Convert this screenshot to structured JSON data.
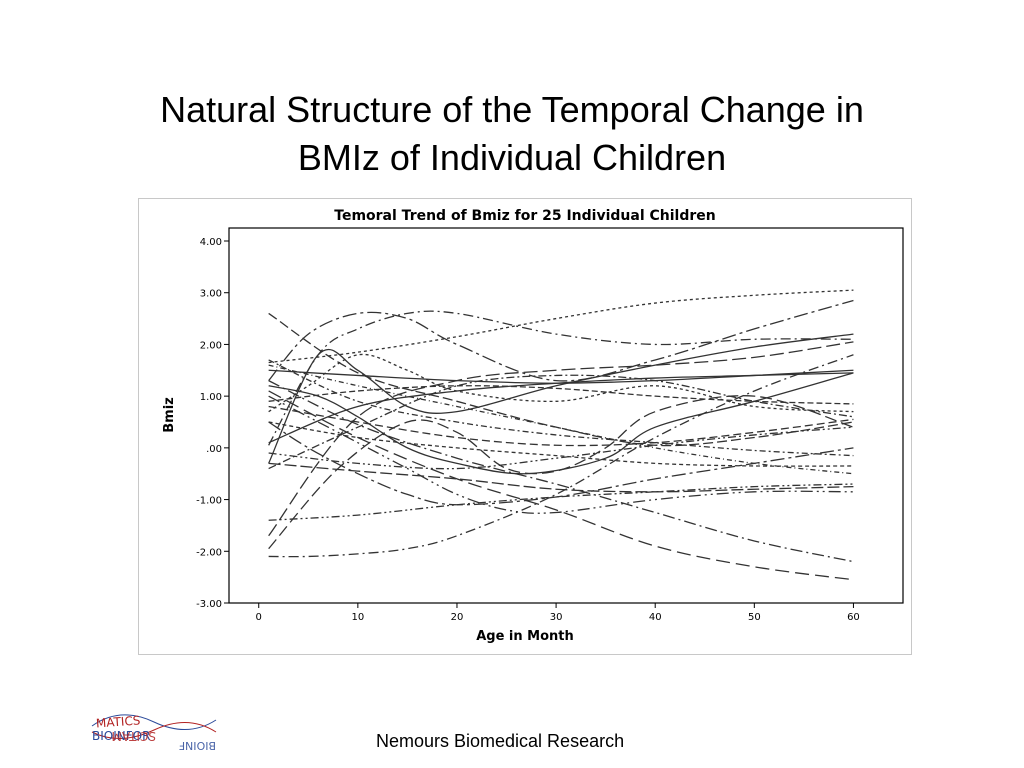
{
  "slide": {
    "title_line1": "Natural Structure of the Temporal Change in",
    "title_line2": "BMIz of Individual Children",
    "footer": "Nemours Biomedical Research",
    "logo_text_top": "BIOINFORMATICS",
    "logo_text_mirror": "BIOINFORMATICS"
  },
  "chart_data": {
    "type": "line",
    "title": "Temoral Trend of Bmiz for 25 Individual Children",
    "xlabel": "Age in Month",
    "ylabel": "Bmiz",
    "xlim": [
      -3,
      65
    ],
    "ylim": [
      -3,
      4
    ],
    "x_ticks": [
      0,
      10,
      20,
      30,
      40,
      50,
      60
    ],
    "x_tick_labels": [
      "0",
      "10",
      "20",
      "30",
      "40",
      "50",
      "60"
    ],
    "y_ticks": [
      -3,
      -2,
      -1,
      0,
      1,
      2,
      3,
      4
    ],
    "y_tick_labels": [
      "-3.00",
      "-2.00",
      "-1.00",
      ".00",
      "1.00",
      "2.00",
      "3.00",
      "4.00"
    ],
    "grid": false,
    "line_color": "#333333",
    "series": [
      {
        "x": [
          1,
          10,
          20,
          30,
          40,
          50,
          60
        ],
        "y": [
          1.65,
          1.85,
          2.15,
          2.5,
          2.8,
          2.95,
          3.05
        ],
        "dash": "3 3"
      },
      {
        "x": [
          1,
          6,
          10,
          15,
          20,
          30,
          40,
          50,
          60
        ],
        "y": [
          0.05,
          1.8,
          2.3,
          2.6,
          2.6,
          2.2,
          2.0,
          2.1,
          2.1
        ],
        "dash": "10 4 2 4"
      },
      {
        "x": [
          1,
          5,
          10,
          15,
          20,
          30,
          40,
          50,
          60
        ],
        "y": [
          1.3,
          2.2,
          2.6,
          2.5,
          2.0,
          1.3,
          1.7,
          2.3,
          2.85
        ],
        "dash": "14 4 3 4"
      },
      {
        "x": [
          1,
          10,
          20,
          30,
          40,
          50,
          60
        ],
        "y": [
          1.5,
          1.4,
          1.3,
          1.25,
          1.3,
          1.4,
          1.5
        ],
        "dash": ""
      },
      {
        "x": [
          1,
          6,
          10,
          15,
          20,
          30,
          40,
          50,
          60
        ],
        "y": [
          -0.3,
          1.8,
          1.5,
          0.8,
          0.7,
          1.2,
          1.6,
          1.95,
          2.2
        ],
        "dash": ""
      },
      {
        "x": [
          1,
          10,
          20,
          30,
          40,
          50,
          60
        ],
        "y": [
          -0.3,
          -0.45,
          -0.6,
          -0.8,
          -0.85,
          -0.8,
          -0.75
        ],
        "dash": "12 4"
      },
      {
        "x": [
          1,
          10,
          20,
          30,
          40,
          50,
          60
        ],
        "y": [
          -1.4,
          -1.3,
          -1.1,
          -0.95,
          -0.85,
          -0.75,
          -0.7
        ],
        "dash": "8 3 2 3 2 3"
      },
      {
        "x": [
          1,
          5,
          10,
          15,
          20,
          30,
          40,
          50,
          60
        ],
        "y": [
          -2.1,
          -2.1,
          -2.05,
          -1.95,
          -1.7,
          -0.9,
          0.2,
          1.1,
          1.8
        ],
        "dash": "10 4 2 4"
      },
      {
        "x": [
          1,
          10,
          20,
          30,
          40,
          50,
          60
        ],
        "y": [
          -1.7,
          0.6,
          1.3,
          1.5,
          1.6,
          1.75,
          2.05
        ],
        "dash": "14 5"
      },
      {
        "x": [
          1,
          10,
          20,
          30,
          40,
          50,
          60
        ],
        "y": [
          1.1,
          0.2,
          -0.6,
          -1.2,
          -1.9,
          -2.3,
          -2.55
        ],
        "dash": "14 6"
      },
      {
        "x": [
          1,
          10,
          20,
          30,
          40,
          50,
          60
        ],
        "y": [
          1.3,
          0.45,
          -0.2,
          -0.7,
          -1.25,
          -1.8,
          -2.2
        ],
        "dash": "12 4 2 4"
      },
      {
        "x": [
          1,
          10,
          20,
          30,
          40,
          50,
          60
        ],
        "y": [
          0.5,
          0.2,
          0.0,
          -0.15,
          -0.3,
          -0.35,
          -0.35
        ],
        "dash": "4 3"
      },
      {
        "x": [
          1,
          10,
          20,
          30,
          40,
          50,
          60
        ],
        "y": [
          0.1,
          0.8,
          1.1,
          1.25,
          1.35,
          1.4,
          1.45
        ],
        "dash": ""
      },
      {
        "x": [
          1,
          10,
          20,
          30,
          40,
          50,
          60
        ],
        "y": [
          2.6,
          1.45,
          0.9,
          0.4,
          0.05,
          0.2,
          0.5
        ],
        "dash": "10 4"
      },
      {
        "x": [
          1,
          10,
          20,
          30,
          40,
          50,
          60
        ],
        "y": [
          1.7,
          0.9,
          0.5,
          0.25,
          0.1,
          -0.05,
          -0.15
        ],
        "dash": "6 3 2 3"
      },
      {
        "x": [
          1,
          10,
          20,
          30,
          40,
          50,
          60
        ],
        "y": [
          0.9,
          1.1,
          1.2,
          1.15,
          1.0,
          0.9,
          0.85
        ],
        "dash": "6 3"
      },
      {
        "x": [
          1,
          10,
          20,
          30,
          40,
          50,
          60
        ],
        "y": [
          0.8,
          0.5,
          0.2,
          0.05,
          0.1,
          0.3,
          0.55
        ],
        "dash": "8 4"
      },
      {
        "x": [
          1,
          10,
          20,
          30,
          40,
          50,
          60
        ],
        "y": [
          -0.1,
          -0.3,
          -0.4,
          -0.2,
          0.05,
          0.25,
          0.4
        ],
        "dash": "8 3 2 3 2 3"
      },
      {
        "x": [
          1,
          8,
          15,
          20,
          25,
          30,
          35,
          40,
          50,
          60
        ],
        "y": [
          -1.95,
          -0.4,
          0.5,
          0.3,
          -0.4,
          -0.45,
          0.0,
          0.7,
          1.0,
          0.4
        ],
        "dash": "12 5"
      },
      {
        "x": [
          1,
          5,
          10,
          15,
          20,
          25,
          30,
          40,
          50,
          60
        ],
        "y": [
          1.0,
          0.6,
          0.1,
          -0.4,
          -0.9,
          -1.2,
          -1.25,
          -1.0,
          -0.85,
          -0.85
        ],
        "dash": "12 4 2 4 2 4"
      },
      {
        "x": [
          1,
          6,
          10,
          15,
          20,
          27,
          35,
          40,
          50,
          60
        ],
        "y": [
          1.2,
          1.0,
          0.6,
          0.0,
          -0.3,
          -0.5,
          -0.2,
          0.4,
          0.9,
          1.45
        ],
        "dash": ""
      },
      {
        "x": [
          1,
          5,
          10,
          15,
          20,
          30,
          40,
          50,
          60
        ],
        "y": [
          0.7,
          1.2,
          1.8,
          1.5,
          1.1,
          0.9,
          1.2,
          0.8,
          0.7
        ],
        "dash": "3 3"
      },
      {
        "x": [
          1,
          10,
          20,
          30,
          40,
          50,
          60
        ],
        "y": [
          -0.4,
          0.4,
          1.2,
          1.4,
          1.3,
          0.9,
          0.6
        ],
        "dash": "8 3 2 3"
      },
      {
        "x": [
          1,
          10,
          20,
          30,
          40,
          50,
          60
        ],
        "y": [
          1.6,
          1.2,
          0.8,
          0.4,
          0.0,
          -0.3,
          -0.5
        ],
        "dash": "5 3 1 3"
      },
      {
        "x": [
          1,
          5,
          10,
          15,
          20,
          30,
          40,
          50,
          60
        ],
        "y": [
          0.5,
          0.0,
          -0.5,
          -0.9,
          -1.1,
          -0.95,
          -0.6,
          -0.3,
          0.0
        ],
        "dash": "14 4 3 4"
      }
    ]
  }
}
